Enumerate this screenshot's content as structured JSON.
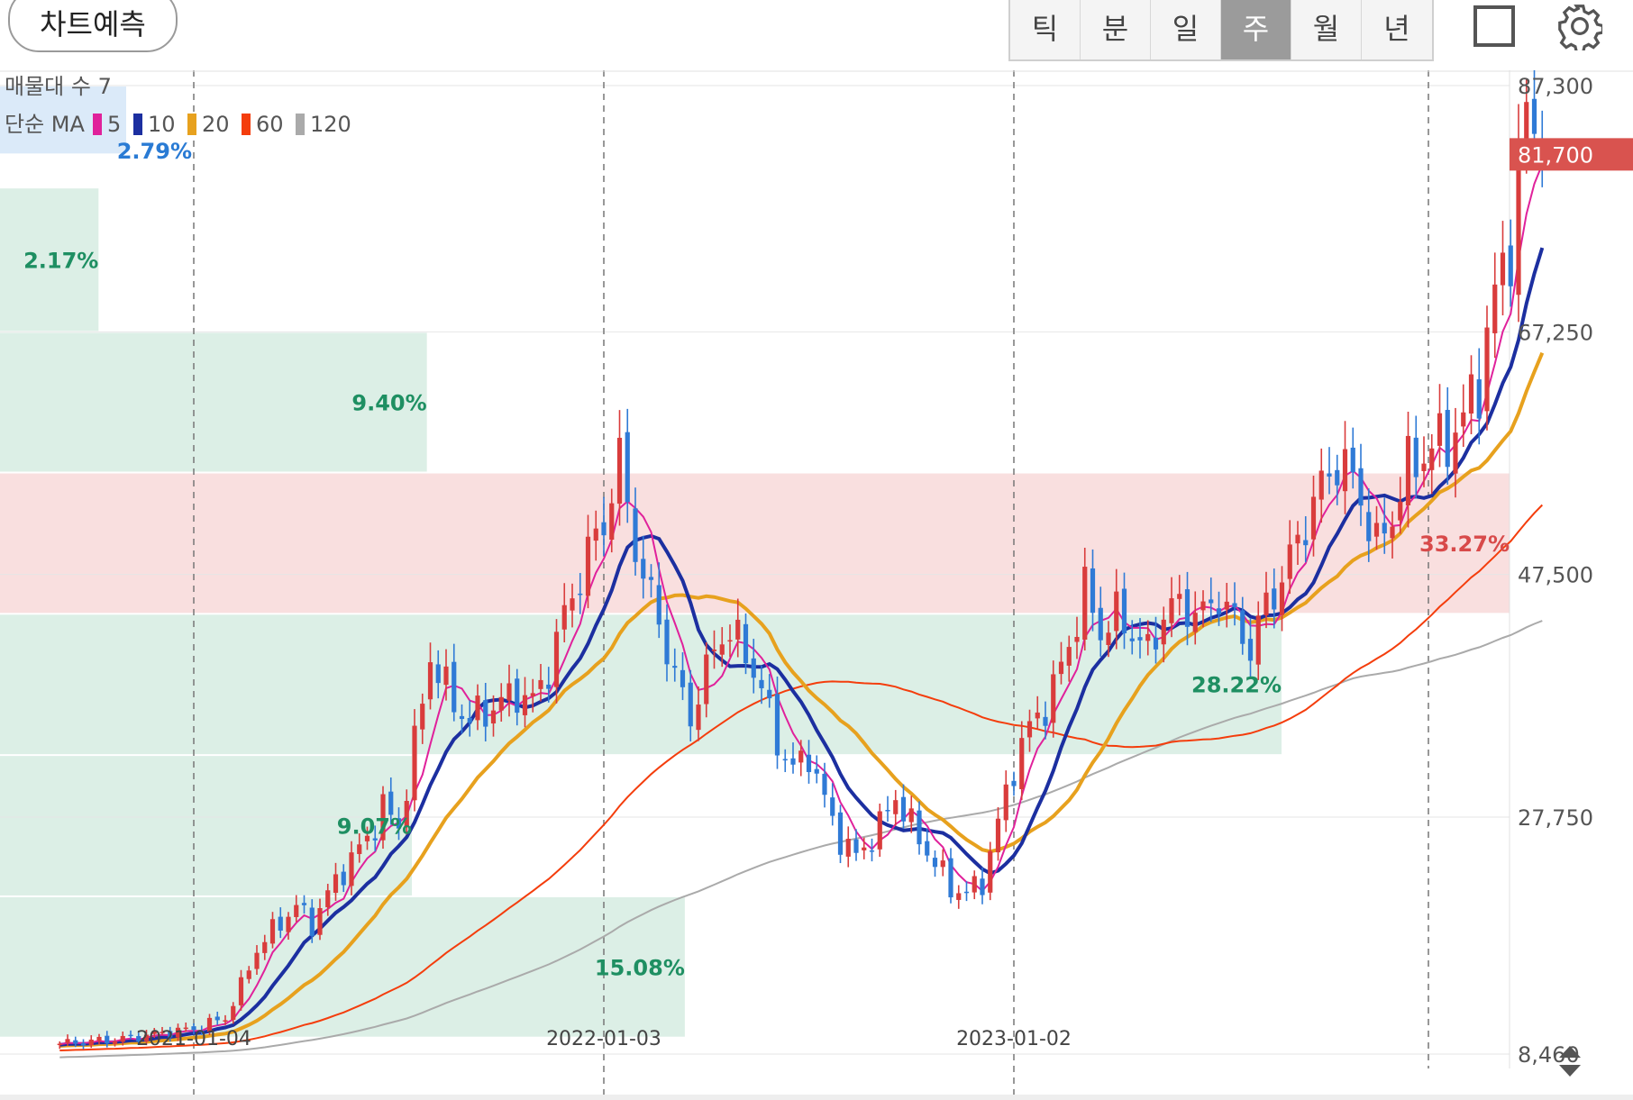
{
  "header": {
    "predict_button": "차트예측",
    "tabs": [
      {
        "label": "틱",
        "active": false
      },
      {
        "label": "분",
        "active": false
      },
      {
        "label": "일",
        "active": false
      },
      {
        "label": "주",
        "active": true
      },
      {
        "label": "월",
        "active": false
      },
      {
        "label": "년",
        "active": false
      }
    ],
    "icons": [
      "fullscreen-icon",
      "gear-icon"
    ]
  },
  "legend": {
    "volume_profile_label": "매물대 수 7",
    "ma_label": "단순 MA",
    "ma_items": [
      {
        "period": "5",
        "color": "#e0219b"
      },
      {
        "period": "10",
        "color": "#1c2fa0"
      },
      {
        "period": "20",
        "color": "#e7a11e"
      },
      {
        "period": "60",
        "color": "#f43d0c"
      },
      {
        "period": "120",
        "color": "#aaaaaa"
      }
    ]
  },
  "chart_data": {
    "type": "candlestick",
    "interval": "week",
    "y_axis_ticks": [
      "87,300",
      "67,250",
      "47,500",
      "27,750",
      "8,460"
    ],
    "y_tick_values": [
      87300,
      67250,
      47500,
      27750,
      8460
    ],
    "current_price": "81,700",
    "current_price_value": 81700,
    "x_axis_ticks": [
      "2021-01-04",
      "2022-01-03",
      "2023-01-02"
    ],
    "volume_profile": [
      {
        "from": 81700,
        "to": 87300,
        "percent": "2.79%",
        "value": 2.79,
        "highlight": "current"
      },
      {
        "from": 67250,
        "to": 79000,
        "percent": "2.17%",
        "value": 2.17
      },
      {
        "from": 55800,
        "to": 67250,
        "percent": "9.40%",
        "value": 9.4
      },
      {
        "from": 44300,
        "to": 55800,
        "percent": "33.27%",
        "value": 33.27,
        "highlight": "max"
      },
      {
        "from": 32800,
        "to": 44300,
        "percent": "28.22%",
        "value": 28.22
      },
      {
        "from": 21300,
        "to": 32800,
        "percent": "9.07%",
        "value": 9.07
      },
      {
        "from": 9800,
        "to": 21300,
        "percent": "15.08%",
        "value": 15.08
      }
    ],
    "colors": {
      "up": "#d93c3c",
      "down": "#2f7ad6"
    },
    "price_path": [
      [
        "2020-09-07",
        9300
      ],
      [
        "2020-10-05",
        9500
      ],
      [
        "2020-11-02",
        9700
      ],
      [
        "2020-12-07",
        10200
      ],
      [
        "2021-01-04",
        10500
      ],
      [
        "2021-02-01",
        11400
      ],
      [
        "2021-02-15",
        14000
      ],
      [
        "2021-03-01",
        17000
      ],
      [
        "2021-03-15",
        18500
      ],
      [
        "2021-04-05",
        20500
      ],
      [
        "2021-04-19",
        19000
      ],
      [
        "2021-05-03",
        21500
      ],
      [
        "2021-05-17",
        23500
      ],
      [
        "2021-06-07",
        26000
      ],
      [
        "2021-06-21",
        28500
      ],
      [
        "2021-07-05",
        27000
      ],
      [
        "2021-07-19",
        33500
      ],
      [
        "2021-08-02",
        41000
      ],
      [
        "2021-08-16",
        38000
      ],
      [
        "2021-09-06",
        35500
      ],
      [
        "2021-09-20",
        36500
      ],
      [
        "2021-10-04",
        37000
      ],
      [
        "2021-10-18",
        38000
      ],
      [
        "2021-11-01",
        37000
      ],
      [
        "2021-11-15",
        40000
      ],
      [
        "2021-12-06",
        46000
      ],
      [
        "2022-01-03",
        52000
      ],
      [
        "2022-01-17",
        56500
      ],
      [
        "2022-02-07",
        47000
      ],
      [
        "2022-02-21",
        44000
      ],
      [
        "2022-03-07",
        39000
      ],
      [
        "2022-03-21",
        36000
      ],
      [
        "2022-04-04",
        39500
      ],
      [
        "2022-04-18",
        43000
      ],
      [
        "2022-05-02",
        42000
      ],
      [
        "2022-05-16",
        40000
      ],
      [
        "2022-06-06",
        34000
      ],
      [
        "2022-06-20",
        31500
      ],
      [
        "2022-07-04",
        33000
      ],
      [
        "2022-07-18",
        29000
      ],
      [
        "2022-08-01",
        26000
      ],
      [
        "2022-08-15",
        24500
      ],
      [
        "2022-09-05",
        27000
      ],
      [
        "2022-09-19",
        29500
      ],
      [
        "2022-10-03",
        27000
      ],
      [
        "2022-10-17",
        25000
      ],
      [
        "2022-11-07",
        22000
      ],
      [
        "2022-11-21",
        21500
      ],
      [
        "2022-12-05",
        22500
      ],
      [
        "2023-01-02",
        32000
      ],
      [
        "2023-01-16",
        35000
      ],
      [
        "2023-02-06",
        38000
      ],
      [
        "2023-02-20",
        42000
      ],
      [
        "2023-03-06",
        46000
      ],
      [
        "2023-03-20",
        43000
      ],
      [
        "2023-04-03",
        44000
      ],
      [
        "2023-04-17",
        43000
      ],
      [
        "2023-05-01",
        41000
      ],
      [
        "2023-05-15",
        44500
      ],
      [
        "2023-06-05",
        45000
      ],
      [
        "2023-06-19",
        44000
      ],
      [
        "2023-07-03",
        46000
      ],
      [
        "2023-07-17",
        43500
      ],
      [
        "2023-08-01",
        41500
      ],
      [
        "2023-08-14",
        45000
      ],
      [
        "2023-09-04",
        48500
      ],
      [
        "2023-09-18",
        52000
      ],
      [
        "2023-10-02",
        54500
      ],
      [
        "2023-10-16",
        57000
      ],
      [
        "2023-11-06",
        54000
      ],
      [
        "2023-11-20",
        49500
      ],
      [
        "2023-12-04",
        52500
      ],
      [
        "2023-12-18",
        56000
      ],
      [
        "2024-01-01",
        57500
      ],
      [
        "2024-01-15",
        58000
      ],
      [
        "2024-02-05",
        60000
      ],
      [
        "2024-02-19",
        63500
      ],
      [
        "2024-03-04",
        70000
      ],
      [
        "2024-03-18",
        75000
      ],
      [
        "2024-04-01",
        85000
      ],
      [
        "2024-04-15",
        81700
      ]
    ]
  }
}
